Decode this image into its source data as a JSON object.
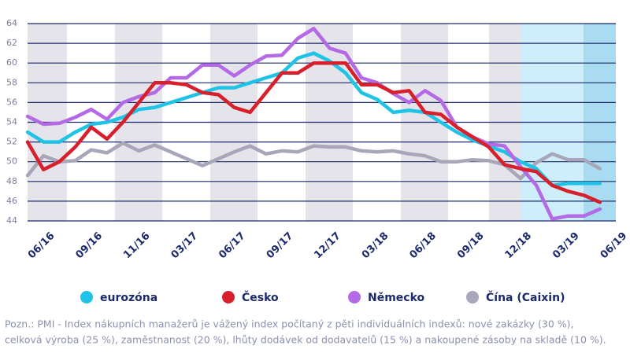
{
  "chart_data": {
    "type": "line",
    "categories": [
      null,
      "06/16",
      null,
      null,
      "09/16",
      null,
      null,
      "11/16",
      null,
      null,
      "03/17",
      null,
      null,
      "06/17",
      null,
      null,
      "09/17",
      null,
      null,
      "12/17",
      null,
      null,
      "03/18",
      null,
      null,
      "06/18",
      null,
      null,
      "09/18",
      null,
      null,
      "12/18",
      null,
      null,
      "03/19",
      null,
      null,
      "06/19"
    ],
    "series": [
      {
        "name": "eurozóna",
        "color": "#1ec3e6",
        "values": [
          53,
          52,
          52,
          53,
          53.8,
          54,
          54.5,
          55.3,
          55.5,
          56,
          56.5,
          57,
          57.5,
          57.5,
          58,
          58.5,
          59,
          60.5,
          61,
          60.2,
          59,
          57,
          56.3,
          55,
          55.2,
          55,
          54,
          53,
          52.2,
          51.6,
          51,
          50,
          49.3,
          47.6,
          47.8,
          47.8,
          47.8,
          null
        ]
      },
      {
        "name": "Česko",
        "color": "#d7202b",
        "values": [
          52,
          49.2,
          50,
          51.5,
          53.5,
          52.3,
          54,
          56,
          58,
          58,
          57.8,
          57,
          56.8,
          55.5,
          55,
          57,
          59,
          59,
          60,
          60,
          60,
          57.8,
          57.8,
          57,
          57.2,
          55,
          54.8,
          53.5,
          52.5,
          51.5,
          49.7,
          49.3,
          49,
          47.6,
          47,
          46.6,
          45.9,
          null
        ]
      },
      {
        "name": "Německo",
        "color": "#b46ae6",
        "values": [
          54.6,
          53.8,
          53.9,
          54.5,
          55.3,
          54.3,
          56,
          56.6,
          57,
          58.5,
          58.5,
          59.8,
          59.8,
          58.7,
          59.8,
          60.7,
          60.8,
          62.5,
          63.5,
          61.5,
          61,
          58.5,
          58,
          56.9,
          56,
          57.2,
          56.2,
          53.5,
          52.5,
          51.8,
          51.6,
          49.5,
          47.6,
          44.2,
          44.5,
          44.5,
          45.2,
          null
        ]
      },
      {
        "name": "Čína (Caixin)",
        "color": "#a7a7b9",
        "values": [
          48.6,
          50.6,
          50,
          50.1,
          51.2,
          50.9,
          51.9,
          51.1,
          51.7,
          51,
          50.3,
          49.6,
          50.3,
          51,
          51.6,
          50.8,
          51.1,
          51,
          51.6,
          51.5,
          51.5,
          51.1,
          51,
          51.1,
          50.8,
          50.6,
          50,
          50,
          50.2,
          50.1,
          49.7,
          48.3,
          49.9,
          50.8,
          50.2,
          50.2,
          49.3,
          null
        ]
      }
    ],
    "ylim": [
      44,
      64
    ],
    "yticks": [
      44,
      46,
      48,
      50,
      52,
      54,
      56,
      58,
      60,
      62,
      64
    ],
    "grid": true,
    "note": [
      "Pozn.:  PMI - Index nákupních manažerů je vážený index počítaný z pěti individuálních indexů: nové zakázky (30 %),",
      "celková výroba (25 %), zaměstnanost (20 %), lhůty dodávek od dodavatelů (15 %) a nakoupené zásoby na skladě (10 %)."
    ]
  }
}
